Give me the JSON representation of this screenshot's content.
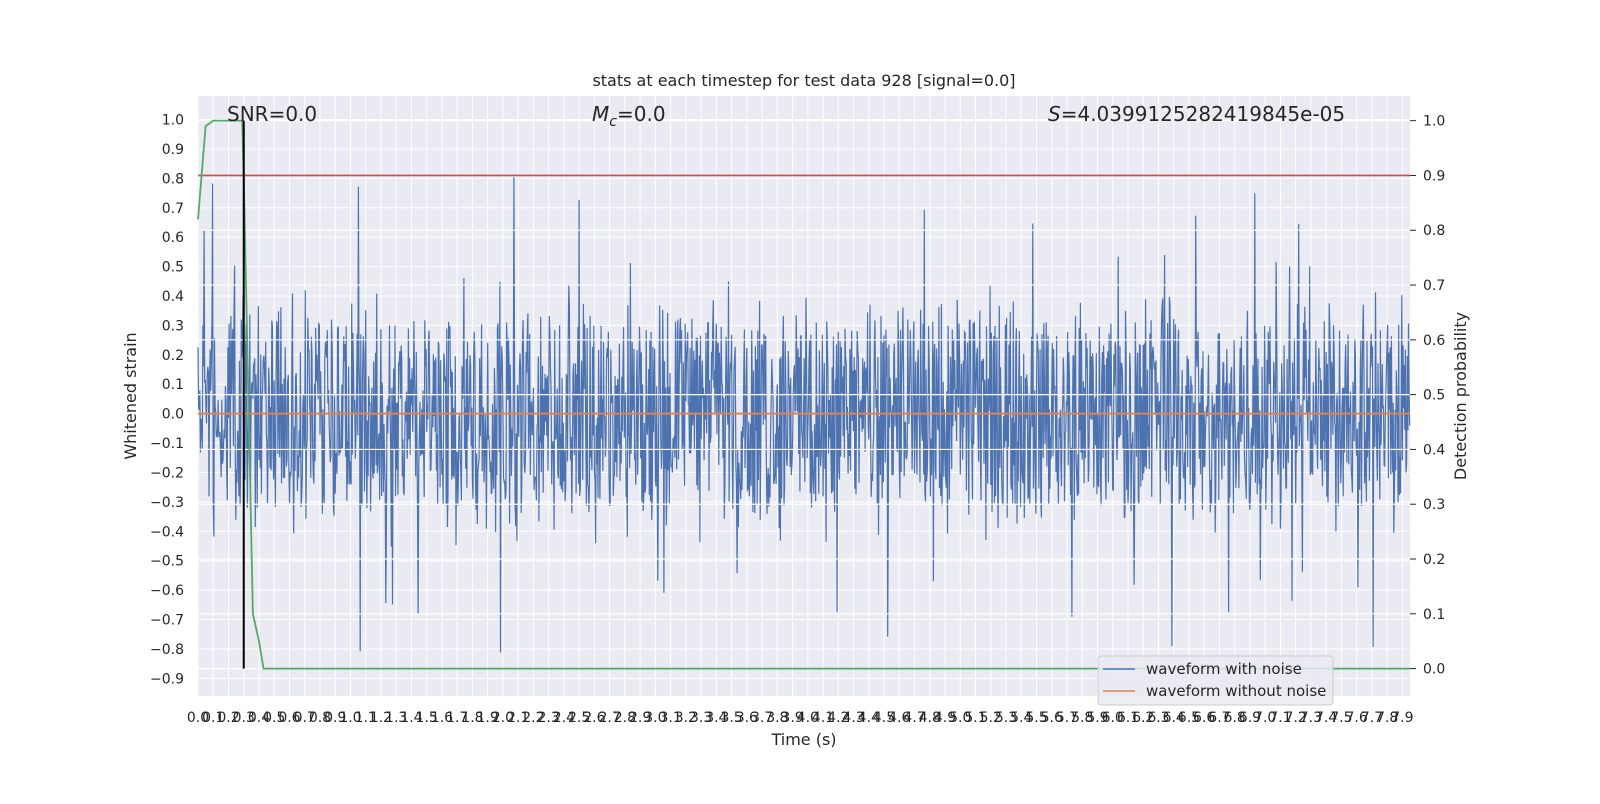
{
  "chart_data": {
    "type": "line",
    "title": "stats at each timestep for test data 928 [signal=0.0]",
    "xlabel": "Time (s)",
    "ylabel_left": "Whitened strain",
    "ylabel_right": "Detection probability",
    "xlim": [
      0.0,
      7.95
    ],
    "ylim_left": [
      -0.96,
      1.08
    ],
    "ylim_right": [
      -0.05,
      1.045
    ],
    "grid": true,
    "annotations": [
      {
        "prefix": "SNR",
        "value": "0.0"
      },
      {
        "prefix": "M",
        "subscript": "c",
        "value": "0.0"
      },
      {
        "prefix": "S",
        "value": "4.0399125282419845e-05"
      }
    ],
    "threshold": {
      "axis": "right",
      "value": 0.9,
      "color": "#c44e52"
    },
    "vline": {
      "x": 0.3,
      "color": "#000000"
    },
    "series": [
      {
        "name": "waveform with noise",
        "axis": "left",
        "color": "#4c72b0",
        "envelope": {
          "typical_max": 0.4,
          "typical_min": -0.45,
          "peak_max": 1.0,
          "peak_min": -0.85,
          "dt": 0.004
        }
      },
      {
        "name": "waveform without noise",
        "axis": "left",
        "color": "#dd8452",
        "x": [
          0.0,
          7.95
        ],
        "y": [
          0.0,
          0.0
        ]
      },
      {
        "axis": "right",
        "color": "#55a868",
        "x": [
          0.0,
          0.05,
          0.1,
          0.2,
          0.29,
          0.3,
          0.33,
          0.36,
          0.4,
          0.43,
          7.95
        ],
        "y": [
          0.82,
          0.99,
          1.0,
          1.0,
          1.0,
          0.9,
          0.5,
          0.1,
          0.05,
          0.0,
          0.0
        ]
      }
    ]
  }
}
